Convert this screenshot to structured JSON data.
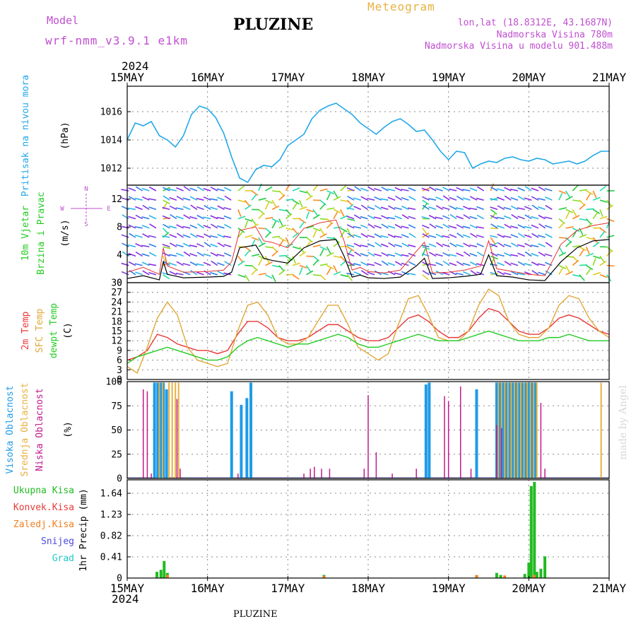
{
  "header": {
    "model_label": "Model",
    "model_name": "wrf-nmm_v3.9.1 e1km",
    "title": "PLUZINE",
    "meteogram": "Meteogram",
    "lonlat": "lon,lat (18.8312E, 43.1687N)",
    "elevation": "Nadmorska Visina 780m",
    "model_elevation": "Nadmorska Visina u modelu 901.488m",
    "year_top": "2024",
    "year_bottom": "2024",
    "footer_station": "PLUZINE",
    "watermark": "made by Angel"
  },
  "colors": {
    "title": "#000000",
    "purple": "#c04fd0",
    "orange": "#e8b040",
    "pressure": "#22a8e8",
    "wind_line": "#000000",
    "wind_max": "#e53030",
    "temp2m": "#e83838",
    "sfc": "#e0a838",
    "dewpt": "#22cc22",
    "cloud_high": "#1e9be8",
    "cloud_mid": "#e8b040",
    "cloud_low": "#c01a8c",
    "precip_total": "#22bb22",
    "precip_conv": "#e83a3a",
    "precip_snow": "#4a4ae0",
    "precip_grad": "#22c8c8",
    "precip_zaledj": "#f08020"
  },
  "chart_data": [
    {
      "type": "line",
      "panel": "pressure",
      "ylabel_main": "Pritisak na nivou mora",
      "unit": "(hPa)",
      "ylim": [
        1010.8,
        1017.8
      ],
      "yticks": [
        1012,
        1014,
        1016
      ],
      "x_days": [
        0,
        0.1,
        0.2,
        0.3,
        0.4,
        0.5,
        0.6,
        0.7,
        0.8,
        0.9,
        1.0,
        1.1,
        1.2,
        1.3,
        1.4,
        1.5,
        1.6,
        1.7,
        1.8,
        1.9,
        2.0,
        2.1,
        2.2,
        2.3,
        2.4,
        2.5,
        2.6,
        2.7,
        2.8,
        2.9,
        3.0,
        3.1,
        3.2,
        3.3,
        3.4,
        3.5,
        3.6,
        3.7,
        3.8,
        3.9,
        4.0,
        4.1,
        4.2,
        4.3,
        4.4,
        4.5,
        4.6,
        4.7,
        4.8,
        4.9,
        5.0,
        5.1,
        5.2,
        5.3,
        5.4,
        5.5,
        5.6,
        5.7,
        5.8,
        5.9,
        6.0
      ],
      "values": [
        1014.0,
        1015.2,
        1015.0,
        1015.3,
        1014.3,
        1014.0,
        1013.5,
        1014.3,
        1015.8,
        1016.4,
        1016.2,
        1015.6,
        1014.5,
        1012.8,
        1011.3,
        1011.0,
        1011.9,
        1012.2,
        1012.1,
        1012.6,
        1013.6,
        1014.0,
        1014.4,
        1015.5,
        1016.1,
        1016.4,
        1016.6,
        1016.2,
        1015.8,
        1015.2,
        1014.8,
        1014.4,
        1014.9,
        1015.3,
        1015.5,
        1015.1,
        1014.6,
        1014.7,
        1014.0,
        1013.2,
        1012.6,
        1013.2,
        1013.1,
        1012.0,
        1012.3,
        1012.5,
        1012.4,
        1012.7,
        1012.8,
        1012.6,
        1012.5,
        1012.7,
        1012.6,
        1012.3,
        1012.4,
        1012.5,
        1012.3,
        1012.5,
        1012.9,
        1013.2,
        1013.2
      ]
    },
    {
      "type": "line",
      "panel": "wind",
      "ylabel_main": "10m Vjetar",
      "ylabel_sub": "Brzina i Pravac",
      "unit": "(m/s)",
      "compass": [
        "N",
        "S",
        "W",
        "E"
      ],
      "ylim": [
        0,
        14
      ],
      "yticks": [
        0,
        4,
        8,
        12
      ],
      "series": [
        {
          "name": "speed",
          "x_days": [
            0,
            0.2,
            0.4,
            0.45,
            0.5,
            0.7,
            1.0,
            1.2,
            1.3,
            1.4,
            1.6,
            1.7,
            1.8,
            2.0,
            2.2,
            2.4,
            2.6,
            2.7,
            2.8,
            2.9,
            3.0,
            3.2,
            3.4,
            3.6,
            3.7,
            3.8,
            4.0,
            4.2,
            4.4,
            4.5,
            4.6,
            4.8,
            5.0,
            5.2,
            5.4,
            5.6,
            5.8,
            6.0
          ],
          "values": [
            0.6,
            1.0,
            0.4,
            3.0,
            1.2,
            0.7,
            0.8,
            0.9,
            1.5,
            5.0,
            5.4,
            3.5,
            3.2,
            2.8,
            5.0,
            6.0,
            6.2,
            3.8,
            0.8,
            1.1,
            0.7,
            0.6,
            0.8,
            2.4,
            3.5,
            0.6,
            0.7,
            0.9,
            1.2,
            4.0,
            1.0,
            0.8,
            0.4,
            0.3,
            3.0,
            5.0,
            6.0,
            6.2
          ]
        },
        {
          "name": "gust",
          "x_days": [
            0,
            0.2,
            0.4,
            0.45,
            0.5,
            0.7,
            1.0,
            1.2,
            1.3,
            1.4,
            1.6,
            1.7,
            1.8,
            2.0,
            2.2,
            2.4,
            2.6,
            2.7,
            2.8,
            2.9,
            3.0,
            3.2,
            3.4,
            3.6,
            3.7,
            3.8,
            4.0,
            4.2,
            4.4,
            4.5,
            4.6,
            4.8,
            5.0,
            5.2,
            5.4,
            5.6,
            5.8,
            6.0
          ],
          "values": [
            1.5,
            2.2,
            1.2,
            5.0,
            2.4,
            1.5,
            1.6,
            1.8,
            3.0,
            7.5,
            8.0,
            6.0,
            5.8,
            5.0,
            7.8,
            8.6,
            9.0,
            6.0,
            1.8,
            2.2,
            1.6,
            1.4,
            1.8,
            4.5,
            5.8,
            1.4,
            1.5,
            1.8,
            2.4,
            6.0,
            2.0,
            1.6,
            1.2,
            1.0,
            5.5,
            7.5,
            8.2,
            8.6
          ]
        }
      ]
    },
    {
      "type": "line",
      "panel": "temperature",
      "ylabel_lines": [
        "2m Temp",
        "SFC Temp",
        "dewpt Temp"
      ],
      "unit": "(C)",
      "ylim": [
        0,
        30
      ],
      "yticks": [
        0,
        3,
        6,
        9,
        12,
        15,
        18,
        21,
        24,
        27,
        30
      ],
      "x_days": [
        0,
        0.125,
        0.25,
        0.375,
        0.5,
        0.625,
        0.75,
        0.875,
        1.0,
        1.125,
        1.25,
        1.375,
        1.5,
        1.625,
        1.75,
        1.875,
        2.0,
        2.125,
        2.25,
        2.375,
        2.5,
        2.625,
        2.75,
        2.875,
        3.0,
        3.125,
        3.25,
        3.375,
        3.5,
        3.625,
        3.75,
        3.875,
        4.0,
        4.125,
        4.25,
        4.375,
        4.5,
        4.625,
        4.75,
        4.875,
        5.0,
        5.125,
        5.25,
        5.375,
        5.5,
        5.625,
        5.75,
        5.875,
        6.0
      ],
      "series": [
        {
          "name": "2m Temp",
          "values": [
            6,
            7,
            9,
            14,
            13,
            11,
            10,
            9,
            9,
            8,
            9,
            14,
            18,
            18,
            16,
            13,
            12,
            12,
            13,
            15,
            17,
            17,
            15,
            13,
            12,
            12,
            13,
            16,
            19,
            20,
            18,
            15,
            13,
            13,
            15,
            19,
            22,
            21,
            18,
            15,
            14,
            14,
            16,
            19,
            20,
            19,
            17,
            15,
            14
          ]
        },
        {
          "name": "SFC Temp",
          "values": [
            4,
            2,
            10,
            19,
            24,
            20,
            10,
            6,
            5,
            4,
            5,
            15,
            23,
            24,
            20,
            13,
            11,
            11,
            13,
            18,
            23,
            23,
            17,
            10,
            8,
            6,
            8,
            17,
            25,
            26,
            20,
            13,
            12,
            12,
            15,
            23,
            28,
            26,
            18,
            14,
            13,
            13,
            16,
            23,
            26,
            25,
            19,
            15,
            13
          ]
        },
        {
          "name": "dewpt Temp",
          "values": [
            5,
            7,
            8,
            9,
            10,
            9,
            8,
            7,
            6,
            6,
            7,
            10,
            12,
            13,
            12,
            11,
            10,
            11,
            11,
            12,
            13,
            14,
            13,
            11,
            10,
            10,
            11,
            12,
            13,
            14,
            13,
            12,
            12,
            12,
            13,
            14,
            15,
            14,
            13,
            12,
            12,
            12,
            13,
            13,
            14,
            13,
            12,
            12,
            12
          ]
        }
      ]
    },
    {
      "type": "bar",
      "panel": "clouds",
      "ylabel_lines": [
        "Visoka Oblacnost",
        "Srednja Oblacnost",
        "Niska Oblacnost"
      ],
      "unit": "(%)",
      "ylim": [
        0,
        100
      ],
      "yticks": [
        0,
        25,
        50,
        75,
        100
      ],
      "series": [
        {
          "name": "Visoka Oblacnost",
          "x_days": [
            0.34,
            0.38,
            0.42,
            0.45,
            0.49,
            1.3,
            1.42,
            1.49,
            1.54,
            3.72,
            3.76,
            4.35,
            4.6,
            4.64,
            4.68,
            4.72,
            4.76,
            4.8,
            4.84,
            4.88,
            4.92,
            4.96,
            5.0,
            5.04,
            5.08
          ],
          "values": [
            99,
            99,
            99,
            99,
            92,
            90,
            76,
            83,
            99,
            97,
            99,
            92,
            99,
            99,
            99,
            99,
            99,
            99,
            99,
            99,
            99,
            99,
            99,
            99,
            99
          ]
        },
        {
          "name": "Srednja Oblacnost",
          "x_days": [
            0.4,
            0.44,
            0.52,
            0.56,
            0.6,
            0.64,
            4.62,
            4.66,
            4.7,
            4.74,
            4.78,
            4.82,
            4.86,
            4.9,
            4.94,
            4.98,
            5.02,
            5.06,
            5.1,
            5.9
          ],
          "values": [
            99,
            99,
            99,
            99,
            99,
            99,
            99,
            99,
            99,
            99,
            99,
            99,
            99,
            99,
            99,
            99,
            99,
            99,
            99,
            99
          ]
        },
        {
          "name": "Niska Oblacnost",
          "x_days": [
            0.2,
            0.25,
            0.3,
            0.62,
            0.66,
            1.38,
            2.2,
            2.28,
            2.33,
            2.42,
            2.52,
            2.95,
            3.0,
            3.1,
            3.3,
            3.6,
            3.95,
            4.0,
            4.15,
            4.28,
            4.6,
            4.66,
            5.15,
            5.2
          ],
          "values": [
            92,
            90,
            5,
            82,
            10,
            5,
            5,
            10,
            12,
            10,
            10,
            10,
            86,
            27,
            5,
            10,
            85,
            80,
            95,
            10,
            55,
            52,
            78,
            10
          ]
        }
      ]
    },
    {
      "type": "bar",
      "panel": "precipitation",
      "legend": [
        "Ukupna Kisa",
        "Konvek.Kisa",
        "Zaledj.Kisa",
        "Snijeg",
        "Grad"
      ],
      "unit": "1hr Precip (mm)",
      "ylim": [
        0,
        1.9
      ],
      "yticks": [
        0,
        0.41,
        0.82,
        1.23,
        1.64
      ],
      "series": [
        {
          "name": "Ukupna Kisa",
          "x_days": [
            0.37,
            0.42,
            0.46,
            0.5,
            2.45,
            4.6,
            4.65,
            4.95,
            5.0,
            5.03,
            5.07,
            5.1,
            5.15,
            5.2
          ],
          "values": [
            0.12,
            0.16,
            0.33,
            0.1,
            0.06,
            0.1,
            0.06,
            0.08,
            0.3,
            1.78,
            1.86,
            0.12,
            0.18,
            0.42
          ]
        },
        {
          "name": "Konvek.Kisa",
          "x_days": [
            0.5,
            2.45,
            4.35,
            4.7,
            5.07
          ],
          "values": [
            0.06,
            0.04,
            0.06,
            0.05,
            0.06
          ]
        }
      ],
      "xaxis": {
        "type": "date",
        "labels": [
          "15MAY",
          "16MAY",
          "17MAY",
          "18MAY",
          "19MAY",
          "20MAY",
          "21MAY"
        ],
        "range": [
          "2024-05-15",
          "2024-05-21"
        ]
      }
    }
  ]
}
